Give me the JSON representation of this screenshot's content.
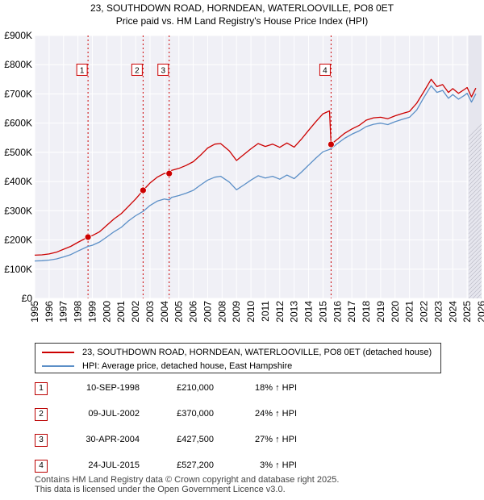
{
  "chart_data": {
    "type": "line",
    "title": "23, SOUTHDOWN ROAD, HORNDEAN, WATERLOOVILLE, PO8 0ET",
    "subtitle": "Price paid vs. HM Land Registry's House Price Index (HPI)",
    "xlabel": "",
    "ylabel": "",
    "xlim": [
      1995,
      2026
    ],
    "ylim": [
      0,
      900000
    ],
    "x_ticks": [
      "1995",
      "1996",
      "1997",
      "1998",
      "1999",
      "2000",
      "2001",
      "2002",
      "2003",
      "2004",
      "2005",
      "2006",
      "2007",
      "2008",
      "2009",
      "2010",
      "2011",
      "2012",
      "2013",
      "2014",
      "2015",
      "2016",
      "2017",
      "2018",
      "2019",
      "2020",
      "2021",
      "2022",
      "2023",
      "2024",
      "2025",
      "2026"
    ],
    "y_ticks": [
      {
        "value": 0,
        "label": "£0"
      },
      {
        "value": 100000,
        "label": "£100K"
      },
      {
        "value": 200000,
        "label": "£200K"
      },
      {
        "value": 300000,
        "label": "£300K"
      },
      {
        "value": 400000,
        "label": "£400K"
      },
      {
        "value": 500000,
        "label": "£500K"
      },
      {
        "value": 600000,
        "label": "£600K"
      },
      {
        "value": 700000,
        "label": "£700K"
      },
      {
        "value": 800000,
        "label": "£800K"
      },
      {
        "value": 900000,
        "label": "£900K"
      }
    ],
    "grid": true,
    "series": [
      {
        "name": "23, SOUTHDOWN ROAD, HORNDEAN, WATERLOOVILLE, PO8 0ET (detached house)",
        "color": "#cc0000",
        "x": [
          1995.0,
          1995.5,
          1996.0,
          1996.5,
          1997.0,
          1997.5,
          1998.0,
          1998.7,
          1999.0,
          1999.5,
          2000.0,
          2000.5,
          2001.0,
          2001.5,
          2002.0,
          2002.52,
          2003.0,
          2003.5,
          2004.0,
          2004.33,
          2004.5,
          2005.0,
          2005.5,
          2006.0,
          2006.5,
          2007.0,
          2007.5,
          2007.9,
          2008.5,
          2009.0,
          2009.5,
          2010.0,
          2010.5,
          2011.0,
          2011.5,
          2012.0,
          2012.5,
          2013.0,
          2013.5,
          2014.0,
          2014.5,
          2015.0,
          2015.45,
          2015.56,
          2016.0,
          2016.5,
          2017.0,
          2017.5,
          2018.0,
          2018.5,
          2019.0,
          2019.5,
          2020.0,
          2020.5,
          2021.0,
          2021.5,
          2022.0,
          2022.5,
          2022.9,
          2023.3,
          2023.7,
          2024.0,
          2024.4,
          2024.8,
          2025.0,
          2025.3,
          2025.6
        ],
        "y": [
          148000,
          149000,
          152000,
          158000,
          168000,
          178000,
          192000,
          210000,
          215000,
          228000,
          250000,
          272000,
          290000,
          315000,
          340000,
          370000,
          395000,
          415000,
          428000,
          427500,
          438000,
          445000,
          455000,
          468000,
          490000,
          515000,
          528000,
          530000,
          505000,
          472000,
          492000,
          512000,
          530000,
          520000,
          528000,
          517000,
          532000,
          518000,
          545000,
          575000,
          605000,
          632000,
          642000,
          527200,
          545000,
          565000,
          580000,
          592000,
          610000,
          618000,
          620000,
          615000,
          625000,
          633000,
          640000,
          668000,
          708000,
          750000,
          725000,
          732000,
          705000,
          718000,
          702000,
          715000,
          722000,
          690000,
          720000
        ]
      },
      {
        "name": "HPI: Average price, detached house, East Hampshire",
        "color": "#5b8fc7",
        "x": [
          1995.0,
          1995.5,
          1996.0,
          1996.5,
          1997.0,
          1997.5,
          1998.0,
          1998.7,
          1999.0,
          1999.5,
          2000.0,
          2000.5,
          2001.0,
          2001.5,
          2002.0,
          2002.52,
          2003.0,
          2003.5,
          2004.0,
          2004.33,
          2004.5,
          2005.0,
          2005.5,
          2006.0,
          2006.5,
          2007.0,
          2007.5,
          2007.9,
          2008.5,
          2009.0,
          2009.5,
          2010.0,
          2010.5,
          2011.0,
          2011.5,
          2012.0,
          2012.5,
          2013.0,
          2013.5,
          2014.0,
          2014.5,
          2015.0,
          2015.45,
          2015.56,
          2016.0,
          2016.5,
          2017.0,
          2017.5,
          2018.0,
          2018.5,
          2019.0,
          2019.5,
          2020.0,
          2020.5,
          2021.0,
          2021.5,
          2022.0,
          2022.5,
          2022.9,
          2023.3,
          2023.7,
          2024.0,
          2024.4,
          2024.8,
          2025.0,
          2025.3,
          2025.6
        ],
        "y": [
          128000,
          129000,
          131000,
          135000,
          142000,
          150000,
          162000,
          178000,
          182000,
          193000,
          210000,
          228000,
          243000,
          265000,
          283000,
          298000,
          318000,
          333000,
          340000,
          337000,
          346000,
          352000,
          360000,
          370000,
          388000,
          405000,
          415000,
          418000,
          398000,
          372000,
          388000,
          405000,
          420000,
          412000,
          418000,
          408000,
          422000,
          410000,
          432000,
          456000,
          480000,
          502000,
          510000,
          513000,
          530000,
          548000,
          562000,
          573000,
          588000,
          596000,
          600000,
          595000,
          605000,
          613000,
          620000,
          645000,
          688000,
          728000,
          705000,
          712000,
          685000,
          698000,
          682000,
          695000,
          702000,
          672000,
          700000
        ]
      }
    ],
    "sales": [
      {
        "num": "1",
        "x": 1998.7,
        "y": 210000,
        "date": "10-SEP-1998",
        "price": "£210,000",
        "hpi": "18% ↑ HPI"
      },
      {
        "num": "2",
        "x": 2002.52,
        "y": 370000,
        "date": "09-JUL-2002",
        "price": "£370,000",
        "hpi": "24% ↑ HPI"
      },
      {
        "num": "3",
        "x": 2004.33,
        "y": 427500,
        "date": "30-APR-2004",
        "price": "£427,500",
        "hpi": "27% ↑ HPI"
      },
      {
        "num": "4",
        "x": 2015.56,
        "y": 527200,
        "date": "24-JUL-2015",
        "price": "£527,200",
        "hpi": "3% ↑ HPI"
      }
    ],
    "marker_label_y": 780000
  },
  "legend": {
    "series1": "23, SOUTHDOWN ROAD, HORNDEAN, WATERLOOVILLE, PO8 0ET (detached house)",
    "series2": "HPI: Average price, detached house, East Hampshire"
  },
  "footer": {
    "line1": "Contains HM Land Registry data © Crown copyright and database right 2025.",
    "line2": "This data is licensed under the Open Government Licence v3.0."
  }
}
